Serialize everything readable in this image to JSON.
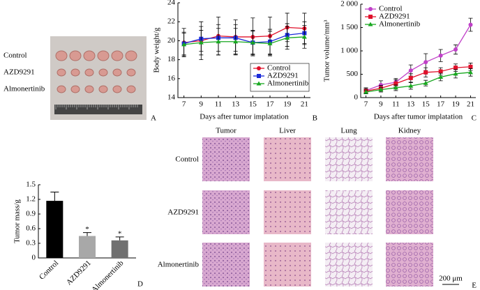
{
  "chart_data": [
    {
      "type": "line",
      "panel": "B",
      "xlabel": "Days after tumor implatation",
      "ylabel": "Body weight/g",
      "x": [
        7,
        9,
        11,
        13,
        15,
        17,
        19,
        21
      ],
      "xlim": [
        6.3,
        21.7
      ],
      "xticks": [
        7,
        9,
        11,
        13,
        15,
        17,
        19,
        21
      ],
      "ylim": [
        14,
        24
      ],
      "yticks": [
        14,
        16,
        18,
        20,
        22,
        24
      ],
      "legend": "lower right",
      "series": [
        {
          "name": "Control",
          "color": "#e0102a",
          "marker": "circle",
          "values": [
            19.8,
            20.0,
            20.5,
            20.4,
            20.4,
            20.5,
            21.4,
            21.3
          ],
          "errors": [
            1.5,
            2.0,
            2.0,
            1.8,
            2.0,
            2.0,
            1.5,
            1.6
          ]
        },
        {
          "name": "AZD9291",
          "color": "#1a2ad8",
          "marker": "square",
          "values": [
            19.7,
            20.2,
            20.3,
            20.3,
            19.8,
            19.9,
            20.6,
            20.8
          ],
          "errors": [
            1.2,
            1.3,
            1.4,
            1.4,
            1.2,
            1.3,
            1.2,
            1.2
          ]
        },
        {
          "name": "Almonertinib",
          "color": "#18a820",
          "marker": "triangle",
          "values": [
            19.6,
            19.8,
            19.9,
            19.9,
            19.8,
            19.7,
            20.3,
            20.4
          ],
          "errors": [
            1.2,
            1.3,
            1.4,
            1.4,
            1.3,
            1.3,
            1.2,
            1.2
          ]
        }
      ]
    },
    {
      "type": "line",
      "panel": "C",
      "xlabel": "Days after tumor implatation",
      "ylabel": "Tumor volume/mm³",
      "x": [
        7,
        9,
        11,
        13,
        15,
        17,
        19,
        21
      ],
      "xlim": [
        6.3,
        21.7
      ],
      "xticks": [
        7,
        9,
        11,
        13,
        15,
        17,
        19,
        21
      ],
      "ylim": [
        0,
        2000
      ],
      "yticks": [
        0,
        500,
        {
          "value": 1000,
          "label": "1 000"
        },
        {
          "value": 1500,
          "label": "1 500"
        },
        {
          "value": 2000,
          "label": "2 000"
        }
      ],
      "legend": "upper left",
      "series": [
        {
          "name": "Control",
          "color": "#c040c8",
          "marker": "circle",
          "values": [
            150,
            270,
            330,
            580,
            760,
            900,
            1030,
            1560
          ],
          "errors": [
            60,
            90,
            80,
            120,
            180,
            130,
            100,
            140
          ]
        },
        {
          "name": "AZD9291",
          "color": "#e0102a",
          "marker": "square",
          "values": [
            140,
            200,
            300,
            420,
            540,
            560,
            640,
            660
          ],
          "errors": [
            50,
            60,
            80,
            90,
            100,
            80,
            80,
            80
          ]
        },
        {
          "name": "Almonertinib",
          "color": "#18a820",
          "marker": "triangle",
          "values": [
            120,
            170,
            210,
            250,
            310,
            440,
            510,
            540
          ],
          "errors": [
            40,
            50,
            60,
            70,
            60,
            80,
            90,
            80
          ]
        }
      ]
    },
    {
      "type": "bar",
      "panel": "D",
      "ylabel": "Tumor mass/g",
      "categories": [
        "Control",
        "AZD9291",
        "Almonertinib"
      ],
      "values": [
        1.17,
        0.45,
        0.36
      ],
      "errors": [
        0.18,
        0.07,
        0.07
      ],
      "colors": [
        "#000000",
        "#a8a8a8",
        "#707070"
      ],
      "ylim": [
        0,
        1.5
      ],
      "yticks": [
        0,
        0.3,
        0.6,
        0.9,
        1.2,
        1.5
      ],
      "annotations": [
        {
          "text": "*",
          "category": 1
        },
        {
          "text": "*",
          "category": 2
        }
      ]
    }
  ],
  "photo": {
    "panel": "A",
    "rows": [
      "Control",
      "AZD9291",
      "Almonertinib"
    ]
  },
  "histology": {
    "panel": "E",
    "columns": [
      "Tumor",
      "Liver",
      "Lung",
      "Kidney"
    ],
    "rows": [
      "Control",
      "AZD9291",
      "Almonertinib"
    ],
    "scale_bar": "200 μm"
  }
}
